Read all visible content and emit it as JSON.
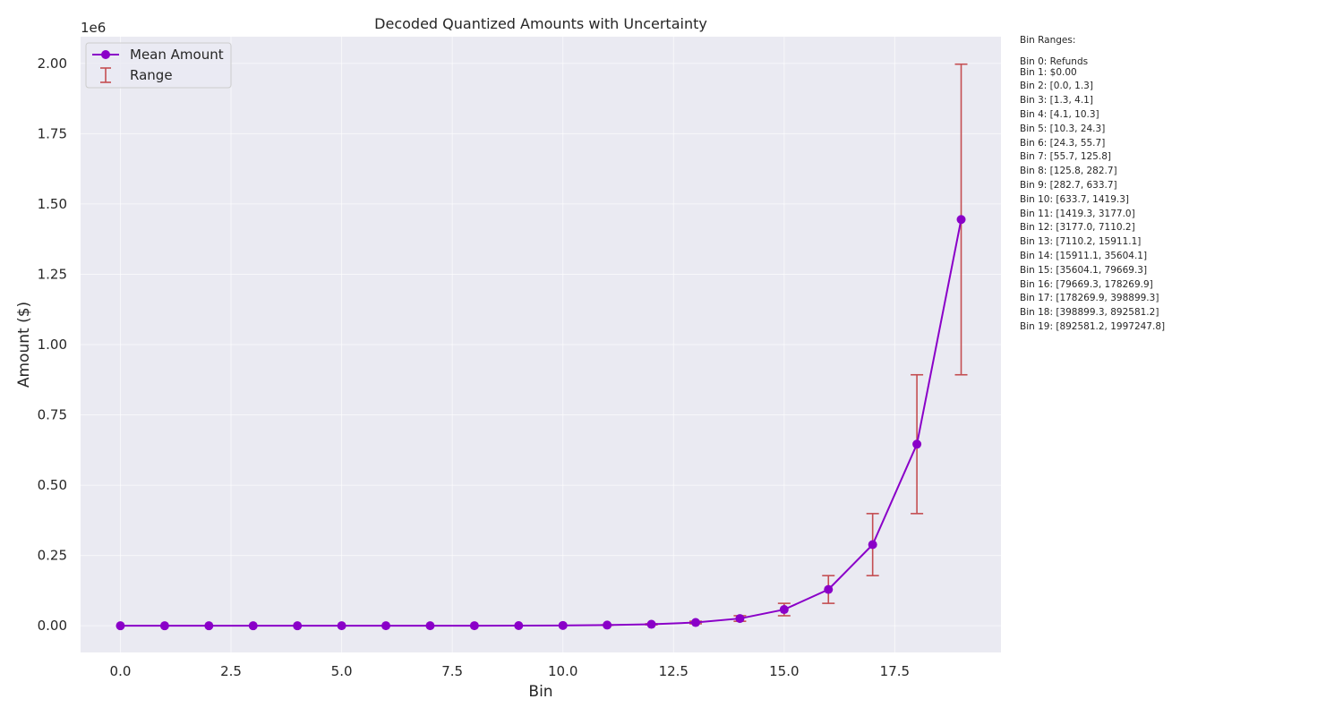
{
  "chart_data": {
    "type": "line",
    "title": "Decoded Quantized Amounts with Uncertainty",
    "xlabel": "Bin",
    "ylabel": "Amount ($)",
    "y_offset_text": "1e6",
    "xlim": [
      -0.9,
      19.9
    ],
    "ylim": [
      -95000,
      2095000
    ],
    "xticks": [
      0,
      2.5,
      5,
      7.5,
      10,
      12.5,
      15,
      17.5
    ],
    "xtick_labels": [
      "0.0",
      "2.5",
      "5.0",
      "7.5",
      "10.0",
      "12.5",
      "15.0",
      "17.5"
    ],
    "yticks": [
      0,
      250000,
      500000,
      750000,
      1000000,
      1250000,
      1500000,
      1750000,
      2000000
    ],
    "ytick_labels": [
      "0.00",
      "0.25",
      "0.50",
      "0.75",
      "1.00",
      "1.25",
      "1.50",
      "1.75",
      "2.00"
    ],
    "grid": true,
    "legend_position": "top-left",
    "legend": [
      "Mean Amount",
      "Range"
    ],
    "series": [
      {
        "name": "Mean Amount",
        "color": "#8a00c8",
        "x": [
          0,
          1,
          2,
          3,
          4,
          5,
          6,
          7,
          8,
          9,
          10,
          11,
          12,
          13,
          14,
          15,
          16,
          17,
          18,
          19
        ],
        "y": [
          0,
          0,
          0.65,
          2.7,
          7.2,
          17.3,
          40,
          90.75,
          204.25,
          458.2,
          1026.5,
          2298.15,
          5143.6,
          11510.65,
          25757.6,
          57636.7,
          128969.6,
          288584.6,
          645740.25,
          1444914.5
        ]
      },
      {
        "name": "Range",
        "type": "errorbar",
        "color": "#c44e52",
        "x": [
          0,
          1,
          2,
          3,
          4,
          5,
          6,
          7,
          8,
          9,
          10,
          11,
          12,
          13,
          14,
          15,
          16,
          17,
          18,
          19
        ],
        "low": [
          0,
          0,
          0,
          1.3,
          4.1,
          10.3,
          24.3,
          55.7,
          125.8,
          282.7,
          633.7,
          1419.3,
          3177.0,
          7110.2,
          15911.1,
          35604.1,
          79669.3,
          178269.9,
          398899.3,
          892581.2
        ],
        "high": [
          0,
          0,
          1.3,
          4.1,
          10.3,
          24.3,
          55.7,
          125.8,
          282.7,
          633.7,
          1419.3,
          3177.0,
          7110.2,
          15911.1,
          35604.1,
          79669.3,
          178269.9,
          398899.3,
          892581.2,
          1997247.8
        ]
      }
    ]
  },
  "colors": {
    "plot_background": "#eaeaf2",
    "grid": "#ffffff",
    "line": "#8a00c8",
    "marker": "#8a00c8",
    "errorbar": "#c44e52"
  },
  "side_note": {
    "heading": "Bin Ranges:",
    "lines": [
      "Bin 0: Refunds",
      "Bin 1: $0.00",
      "Bin 2: [0.0, 1.3]",
      "Bin 3: [1.3, 4.1]",
      "Bin 4: [4.1, 10.3]",
      "Bin 5: [10.3, 24.3]",
      "Bin 6: [24.3, 55.7]",
      "Bin 7: [55.7, 125.8]",
      "Bin 8: [125.8, 282.7]",
      "Bin 9: [282.7, 633.7]",
      "Bin 10: [633.7, 1419.3]",
      "Bin 11: [1419.3, 3177.0]",
      "Bin 12: [3177.0, 7110.2]",
      "Bin 13: [7110.2, 15911.1]",
      "Bin 14: [15911.1, 35604.1]",
      "Bin 15: [35604.1, 79669.3]",
      "Bin 16: [79669.3, 178269.9]",
      "Bin 17: [178269.9, 398899.3]",
      "Bin 18: [398899.3, 892581.2]",
      "Bin 19: [892581.2, 1997247.8]"
    ]
  }
}
